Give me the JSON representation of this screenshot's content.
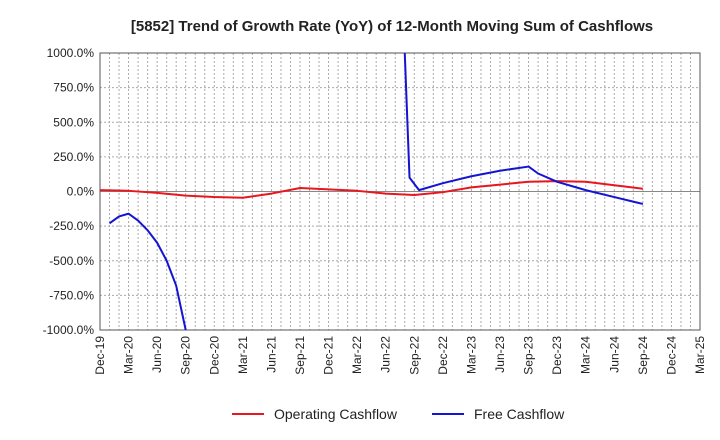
{
  "chart_data": {
    "type": "line",
    "title": "[5852]  Trend of Growth Rate (YoY) of 12-Month Moving Sum of Cashflows",
    "xlabel": "",
    "ylabel": "",
    "ylim": [
      -1000,
      1000
    ],
    "y_ticks": [
      "1000.0%",
      "750.0%",
      "500.0%",
      "250.0%",
      "0.0%",
      "-250.0%",
      "-500.0%",
      "-750.0%",
      "-1000.0%"
    ],
    "y_tick_values": [
      1000,
      750,
      500,
      250,
      0,
      -250,
      -500,
      -750,
      -1000
    ],
    "x_ticks": [
      "Dec-19",
      "Mar-20",
      "Jun-20",
      "Sep-20",
      "Dec-20",
      "Mar-21",
      "Jun-21",
      "Sep-21",
      "Dec-21",
      "Mar-22",
      "Jun-22",
      "Sep-22",
      "Dec-22",
      "Mar-23",
      "Jun-23",
      "Sep-23",
      "Dec-23",
      "Mar-24",
      "Jun-24",
      "Sep-24",
      "Dec-24",
      "Mar-25"
    ],
    "grid": true,
    "legend": "bottom",
    "series": [
      {
        "name": "Operating Cashflow",
        "color": "#e8161e",
        "points": [
          [
            0,
            10
          ],
          [
            3,
            5
          ],
          [
            6,
            -10
          ],
          [
            9,
            -30
          ],
          [
            12,
            -40
          ],
          [
            15,
            -45
          ],
          [
            18,
            -15
          ],
          [
            21,
            25
          ],
          [
            24,
            15
          ],
          [
            27,
            5
          ],
          [
            30,
            -15
          ],
          [
            33,
            -25
          ],
          [
            36,
            -5
          ],
          [
            39,
            30
          ],
          [
            42,
            50
          ],
          [
            45,
            70
          ],
          [
            48,
            75
          ],
          [
            51,
            70
          ],
          [
            54,
            45
          ],
          [
            57,
            20
          ]
        ]
      },
      {
        "name": "Free Cashflow",
        "color": "#1414d2",
        "points": [
          [
            1,
            -230
          ],
          [
            2,
            -180
          ],
          [
            3,
            -160
          ],
          [
            4,
            -210
          ],
          [
            5,
            -280
          ],
          [
            6,
            -370
          ],
          [
            7,
            -500
          ],
          [
            8,
            -680
          ],
          [
            9,
            -1000
          ],
          [
            null,
            null
          ],
          [
            32,
            1000
          ],
          [
            32.5,
            100
          ],
          [
            33.5,
            10
          ],
          [
            36,
            60
          ],
          [
            39,
            110
          ],
          [
            42,
            150
          ],
          [
            45,
            180
          ],
          [
            46,
            130
          ],
          [
            48,
            70
          ],
          [
            51,
            10
          ],
          [
            54,
            -40
          ],
          [
            57,
            -90
          ]
        ]
      }
    ]
  }
}
